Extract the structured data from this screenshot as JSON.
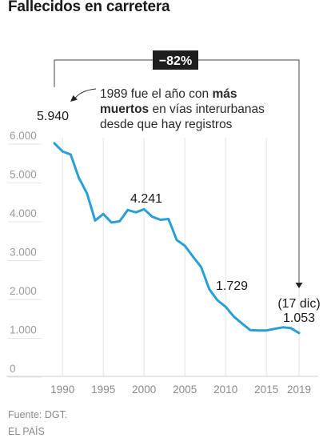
{
  "title": "Fallecidos en carretera",
  "chart_data": {
    "type": "line",
    "x": [
      1989,
      1990,
      1991,
      1992,
      1993,
      1994,
      1995,
      1996,
      1997,
      1998,
      1999,
      2000,
      2001,
      2002,
      2003,
      2004,
      2005,
      2006,
      2007,
      2008,
      2009,
      2010,
      2011,
      2012,
      2013,
      2014,
      2015,
      2016,
      2017,
      2018,
      2019
    ],
    "series": [
      {
        "values": [
          5940,
          5730,
          5650,
          5050,
          4650,
          3950,
          4120,
          3900,
          3930,
          4220,
          4160,
          4241,
          4050,
          3970,
          3990,
          3450,
          3300,
          3020,
          2750,
          2180,
          1897,
          1729,
          1479,
          1301,
          1130,
          1120,
          1120,
          1160,
          1200,
          1180,
          1053
        ]
      }
    ],
    "x_ticks": [
      "1990",
      "1995",
      "2000",
      "2005",
      "2010",
      "2015",
      "2019"
    ],
    "x_tick_values": [
      1990,
      1995,
      2000,
      2005,
      2010,
      2015,
      2019
    ],
    "y_ticks": [
      "0",
      "1.000",
      "2.000",
      "3.000",
      "4.000",
      "5.000",
      "6.000"
    ],
    "y_tick_values": [
      0,
      1000,
      2000,
      3000,
      4000,
      5000,
      6000
    ],
    "xlim": [
      1989,
      2019
    ],
    "ylim": [
      0,
      6000
    ],
    "grid": "vertical",
    "line_color": "#2a9fd6",
    "labels": {
      "start": "5.940",
      "peak": "4.241",
      "mid": "1.729",
      "end_date": "(17 dic)",
      "end": "1.053"
    },
    "annotation": {
      "text_before": "1989 fue el año con ",
      "bold1": "más",
      "line2_bold": "muertos",
      "line2_rest": " en vías interurbanas",
      "line3": "desde que hay registros"
    },
    "change_badge": "−82%"
  },
  "source": "Fuente: DGT.",
  "publisher": "EL PAÍS"
}
